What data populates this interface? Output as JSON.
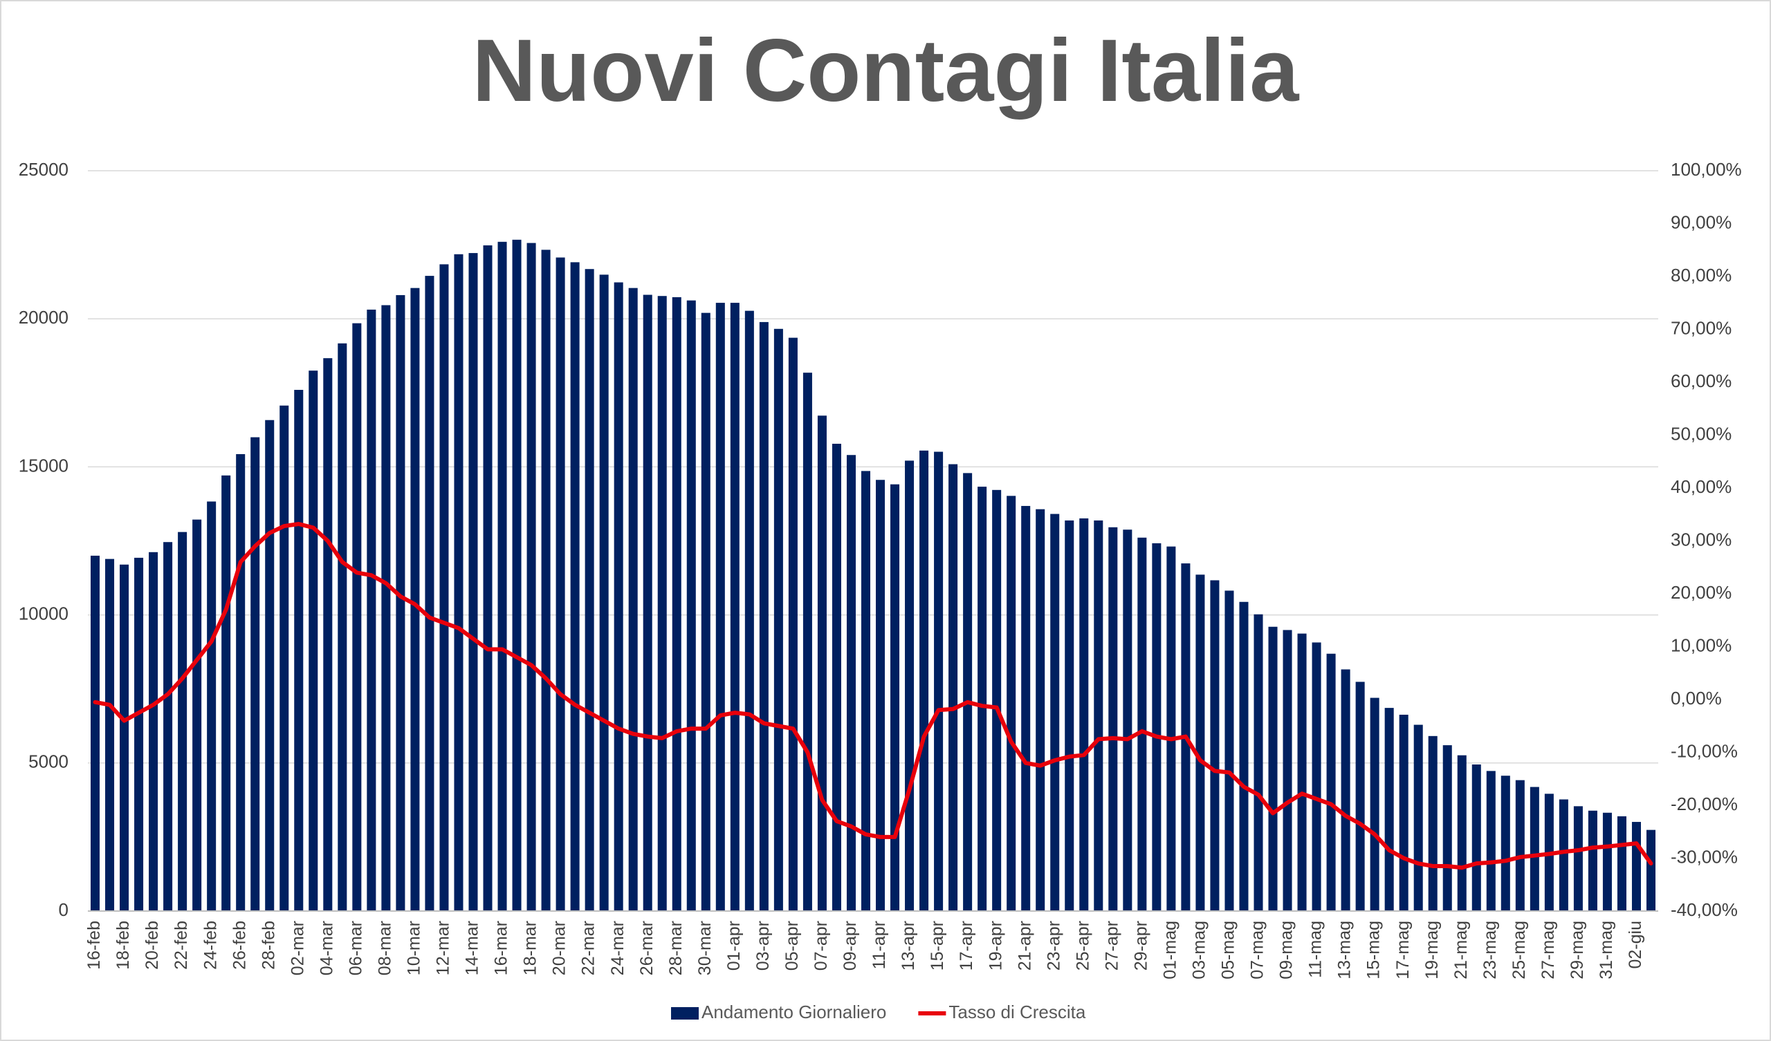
{
  "chart_data": {
    "type": "bar_line",
    "title": "Nuovi Contagi Italia",
    "categories": [
      "16-feb",
      null,
      "18-feb",
      null,
      "20-feb",
      null,
      "22-feb",
      null,
      "24-feb",
      null,
      "26-feb",
      null,
      "28-feb",
      null,
      "02-mar",
      null,
      "04-mar",
      null,
      "06-mar",
      null,
      "08-mar",
      null,
      "10-mar",
      null,
      "12-mar",
      null,
      "14-mar",
      null,
      "16-mar",
      null,
      "18-mar",
      null,
      "20-mar",
      null,
      "22-mar",
      null,
      "24-mar",
      null,
      "26-mar",
      null,
      "28-mar",
      null,
      "30-mar",
      null,
      "01-apr",
      null,
      "03-apr",
      null,
      "05-apr",
      null,
      "07-apr",
      null,
      "09-apr",
      null,
      "11-apr",
      null,
      "13-apr",
      null,
      "15-apr",
      null,
      "17-apr",
      null,
      "19-apr",
      null,
      "21-apr",
      null,
      "23-apr",
      null,
      "25-apr",
      null,
      "27-apr",
      null,
      "29-apr",
      null,
      "01-mag",
      null,
      "03-mag",
      null,
      "05-mag",
      null,
      "07-mag",
      null,
      "09-mag",
      null,
      "11-mag",
      null,
      "13-mag",
      null,
      "15-mag",
      null,
      "17-mag",
      null,
      "19-mag",
      null,
      "21-mag",
      null,
      "23-mag",
      null,
      "25-mag",
      null,
      "27-mag",
      null,
      "29-mag",
      null,
      "31-mag",
      null,
      "02-giu",
      null
    ],
    "series": [
      {
        "name": "Andamento Giornaliero",
        "type": "bar",
        "color": "#002060",
        "values": [
          12000,
          11890,
          11700,
          11930,
          12120,
          12460,
          12800,
          13220,
          13830,
          14710,
          15430,
          16000,
          16580,
          17070,
          17600,
          18250,
          18670,
          19170,
          19850,
          20310,
          20460,
          20800,
          21040,
          21450,
          21840,
          22180,
          22220,
          22480,
          22600,
          22670,
          22560,
          22330,
          22070,
          21910,
          21680,
          21490,
          21230,
          21040,
          20810,
          20770,
          20730,
          20620,
          20200,
          20540,
          20540,
          20270,
          19890,
          19660,
          19360,
          18180,
          16730,
          15780,
          15400,
          14860,
          14560,
          14410,
          15210,
          15550,
          15510,
          15090,
          14790,
          14330,
          14220,
          14020,
          13680,
          13570,
          13410,
          13190,
          13260,
          13190,
          12960,
          12880,
          12610,
          12420,
          12310,
          11740,
          11360,
          11170,
          10820,
          10440,
          10020,
          9600,
          9490,
          9370,
          9070,
          8690,
          8160,
          7740,
          7200,
          6860,
          6630,
          6290,
          5910,
          5600,
          5260,
          4950,
          4730,
          4570,
          4420,
          4190,
          3960,
          3770,
          3540,
          3390,
          3320,
          3200,
          3010,
          2740
        ]
      },
      {
        "name": "Tasso di Crescita",
        "type": "line",
        "axis": "y2",
        "color": "#e8000b",
        "values": [
          -0.5,
          -1,
          -4,
          -2.5,
          -1,
          1,
          4,
          7.5,
          11,
          17,
          26,
          29,
          31.5,
          32.8,
          33.2,
          32.5,
          30,
          26,
          24,
          23.5,
          22,
          19.5,
          18,
          15.5,
          14.5,
          13.5,
          11.5,
          9.5,
          9.5,
          8,
          6.5,
          4,
          1,
          -1,
          -2.5,
          -4,
          -5.5,
          -6.5,
          -7,
          -7.3,
          -6,
          -5.5,
          -5.5,
          -3,
          -2.5,
          -2.8,
          -4.5,
          -5,
          -5.5,
          -10,
          -19,
          -23,
          -24,
          -25.5,
          -26,
          -26,
          -17,
          -7,
          -2,
          -1.8,
          -0.5,
          -1.2,
          -1.5,
          -8,
          -12,
          -12.5,
          -11.5,
          -10.8,
          -10.5,
          -7.5,
          -7.3,
          -7.5,
          -6,
          -7,
          -7.5,
          -7,
          -11.5,
          -13.5,
          -13.8,
          -16.5,
          -18,
          -21.5,
          -19.5,
          -17.8,
          -18.8,
          -19.8,
          -22,
          -23.5,
          -25.5,
          -28.5,
          -30,
          -31,
          -31.5,
          -31.5,
          -31.8,
          -31,
          -30.8,
          -30.5,
          -29.8,
          -29.5,
          -29.2,
          -28.8,
          -28.5,
          -28,
          -27.8,
          -27.5,
          -27.2,
          -31
        ]
      }
    ],
    "ylim": [
      0,
      25000
    ],
    "yticks": [
      0,
      5000,
      10000,
      15000,
      20000,
      25000
    ],
    "y2lim": [
      -40,
      100
    ],
    "y2ticks": [
      {
        "value": -40,
        "label": "-40,00%"
      },
      {
        "value": -30,
        "label": "-30,00%"
      },
      {
        "value": -20,
        "label": "-20,00%"
      },
      {
        "value": -10,
        "label": "-10,00%"
      },
      {
        "value": 0,
        "label": "0,00%"
      },
      {
        "value": 10,
        "label": "10,00%"
      },
      {
        "value": 20,
        "label": "20,00%"
      },
      {
        "value": 30,
        "label": "30,00%"
      },
      {
        "value": 40,
        "label": "40,00%"
      },
      {
        "value": 50,
        "label": "50,00%"
      },
      {
        "value": 60,
        "label": "60,00%"
      },
      {
        "value": 70,
        "label": "70,00%"
      },
      {
        "value": 80,
        "label": "80,00%"
      },
      {
        "value": 90,
        "label": "90,00%"
      },
      {
        "value": 100,
        "label": "100,00%"
      }
    ],
    "grid": true,
    "legend": "bottom"
  }
}
